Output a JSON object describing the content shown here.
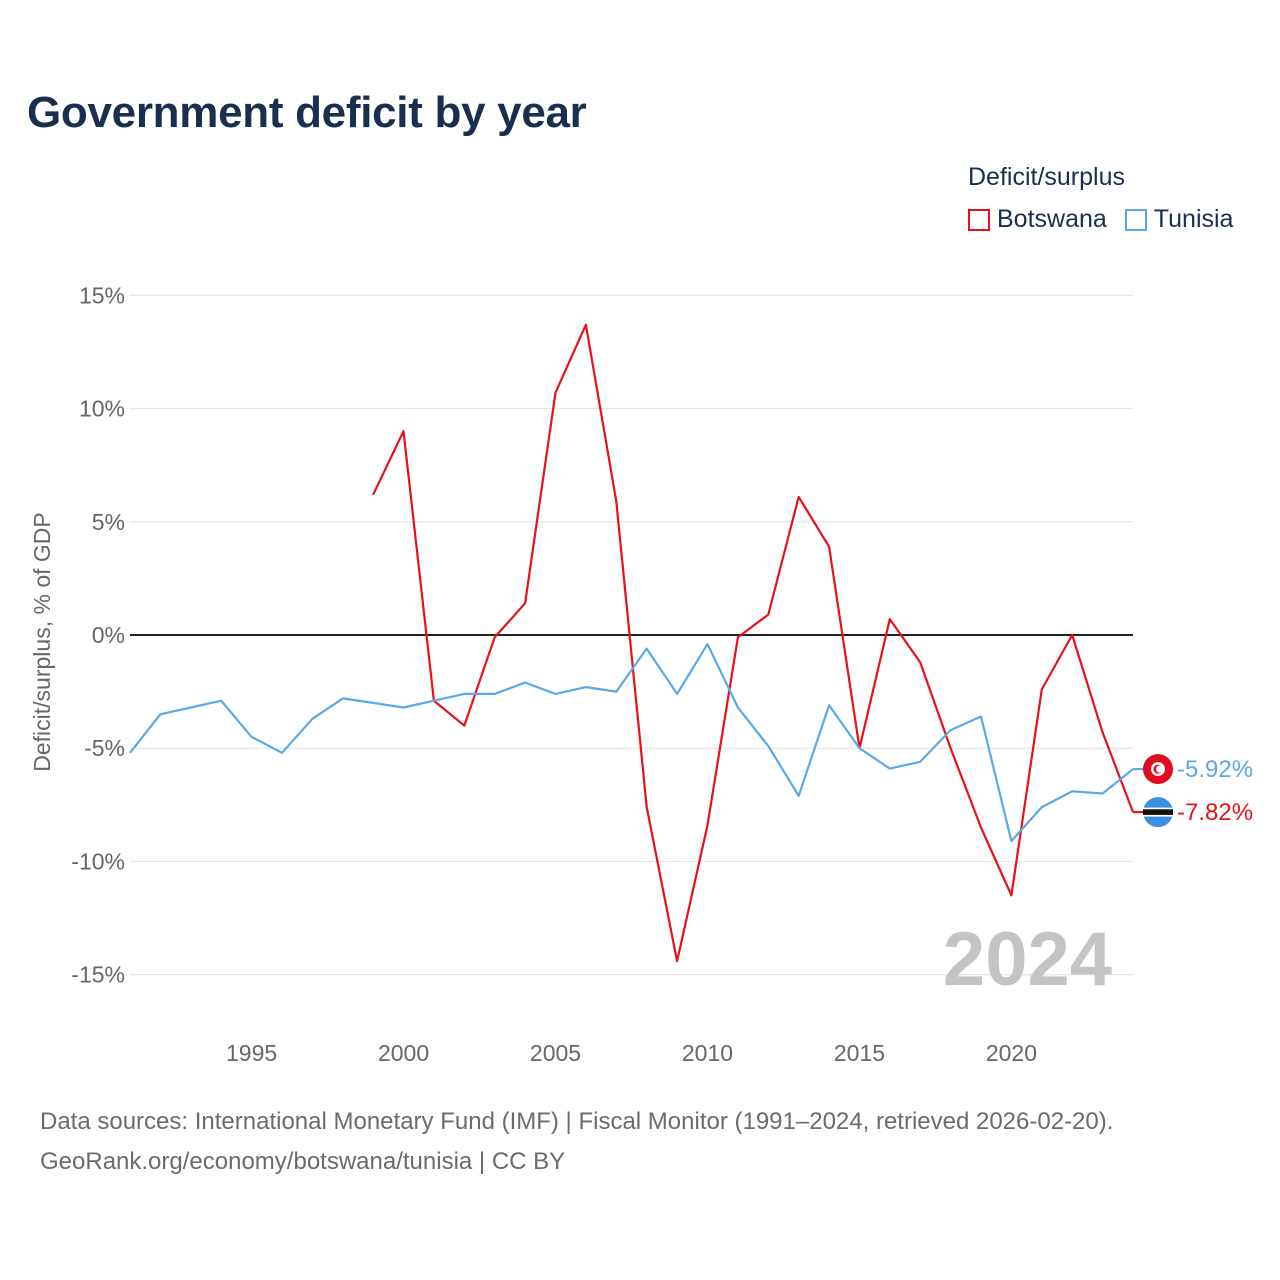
{
  "title": "Government deficit by year",
  "legend": {
    "title": "Deficit/surplus",
    "items": [
      {
        "name": "Botswana",
        "color": "#e8101a"
      },
      {
        "name": "Tunisia",
        "color": "#5ba8e8"
      }
    ]
  },
  "footer": {
    "line1": "Data sources: International Monetary Fund (IMF) | Fiscal Monitor (1991–2024, retrieved 2026-02-20).",
    "line2": "GeoRank.org/economy/botswana/tunisia | CC BY"
  },
  "chart_data": {
    "type": "line",
    "title": "Government deficit by year",
    "xlabel": "",
    "ylabel": "Deficit/surplus, % of GDP",
    "xlim": [
      1991,
      2024
    ],
    "ylim": [
      -17,
      17
    ],
    "x_ticks": [
      1995,
      2000,
      2005,
      2010,
      2015,
      2020
    ],
    "x_tick_labels": [
      "1995",
      "2000",
      "2005",
      "2010",
      "2015",
      "2020"
    ],
    "y_ticks": [
      15,
      10,
      5,
      0,
      -5,
      -10,
      -15
    ],
    "y_tick_labels": [
      "15%",
      "10%",
      "5%",
      "0%",
      "-5%",
      "-10%",
      "-15%"
    ],
    "grid": true,
    "legend_position": "top-right",
    "watermark_year": "2024",
    "series": [
      {
        "name": "Botswana",
        "color": "#e8101a",
        "x": [
          1999,
          2000,
          2001,
          2002,
          2003,
          2004,
          2005,
          2006,
          2007,
          2008,
          2009,
          2010,
          2011,
          2012,
          2013,
          2014,
          2015,
          2016,
          2017,
          2018,
          2019,
          2020,
          2021,
          2022,
          2023,
          2024
        ],
        "values": [
          6.2,
          9.0,
          -2.9,
          -4.0,
          -0.1,
          1.4,
          10.7,
          13.7,
          5.9,
          -7.6,
          -14.4,
          -8.4,
          -0.1,
          0.9,
          6.1,
          3.9,
          -5.0,
          0.7,
          -1.2,
          -5.0,
          -8.5,
          -11.5,
          -2.4,
          0.0,
          -4.3,
          -7.82
        ],
        "end_label": "-7.82%",
        "flag": "botswana-flag-icon"
      },
      {
        "name": "Tunisia",
        "color": "#5ba8e8",
        "x": [
          1991,
          1992,
          1993,
          1994,
          1995,
          1996,
          1997,
          1998,
          1999,
          2000,
          2001,
          2002,
          2003,
          2004,
          2005,
          2006,
          2007,
          2008,
          2009,
          2010,
          2011,
          2012,
          2013,
          2014,
          2015,
          2016,
          2017,
          2018,
          2019,
          2020,
          2021,
          2022,
          2023,
          2024
        ],
        "values": [
          -5.2,
          -3.5,
          -3.2,
          -2.9,
          -4.5,
          -5.2,
          -3.7,
          -2.8,
          -3.0,
          -3.2,
          -2.9,
          -2.6,
          -2.6,
          -2.1,
          -2.6,
          -2.3,
          -2.5,
          -0.6,
          -2.6,
          -0.4,
          -3.2,
          -4.9,
          -7.1,
          -3.1,
          -5.0,
          -5.9,
          -5.6,
          -4.2,
          -3.6,
          -9.1,
          -7.6,
          -6.9,
          -7.0,
          -5.92
        ],
        "end_label": "-5.92%",
        "flag": "tunisia-flag-icon"
      }
    ]
  }
}
